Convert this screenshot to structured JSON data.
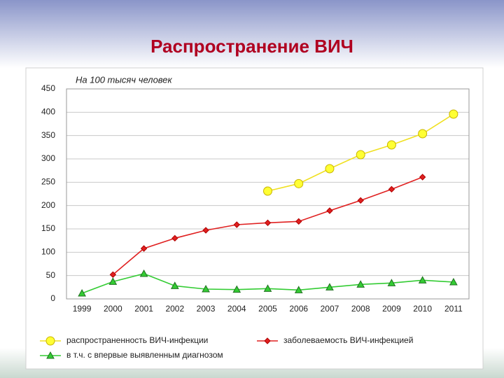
{
  "chart_data": {
    "type": "line",
    "title": "Распространение ВИЧ",
    "annotation": "На 100 тысяч человек",
    "categories": [
      "1999",
      "2000",
      "2001",
      "2002",
      "2003",
      "2004",
      "2005",
      "2006",
      "2007",
      "2008",
      "2009",
      "2010",
      "2011"
    ],
    "series": [
      {
        "name": "распространенность ВИЧ-инфекции",
        "color": "#ffff33",
        "marker": "circle",
        "values": [
          null,
          null,
          null,
          null,
          null,
          null,
          231,
          247,
          279,
          309,
          330,
          354,
          396
        ]
      },
      {
        "name": "заболеваемость ВИЧ-инфекцией",
        "color": "#e02020",
        "marker": "diamond",
        "values": [
          null,
          52,
          108,
          130,
          147,
          159,
          163,
          166,
          189,
          211,
          235,
          261,
          null
        ]
      },
      {
        "name": "в т.ч. с впервые выявленным диагнозом",
        "color": "#33cc33",
        "marker": "triangle",
        "values": [
          12,
          37,
          54,
          28,
          21,
          20,
          22,
          19,
          25,
          31,
          34,
          40,
          36
        ]
      }
    ],
    "ylim": [
      0,
      450
    ],
    "yticks": [
      0,
      50,
      100,
      150,
      200,
      250,
      300,
      350,
      400,
      450
    ],
    "grid": true
  }
}
